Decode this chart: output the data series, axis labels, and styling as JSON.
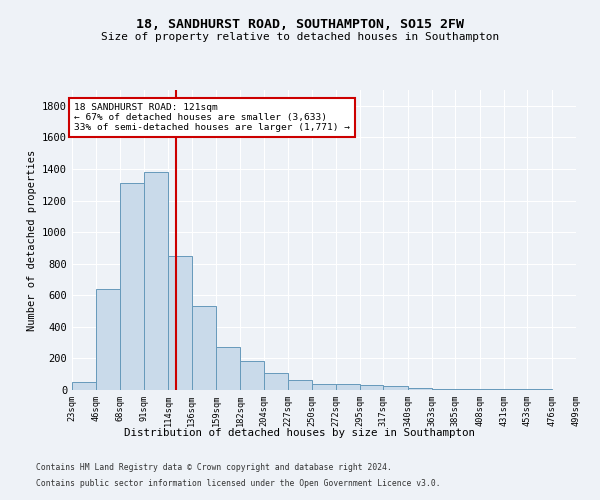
{
  "title1": "18, SANDHURST ROAD, SOUTHAMPTON, SO15 2FW",
  "title2": "Size of property relative to detached houses in Southampton",
  "xlabel": "Distribution of detached houses by size in Southampton",
  "ylabel": "Number of detached properties",
  "bar_color": "#c9daea",
  "bar_edge_color": "#6699bb",
  "vline_x": 121,
  "vline_color": "#cc0000",
  "annotation_title": "18 SANDHURST ROAD: 121sqm",
  "annotation_line2": "← 67% of detached houses are smaller (3,633)",
  "annotation_line3": "33% of semi-detached houses are larger (1,771) →",
  "annotation_box_color": "#cc0000",
  "bin_edges": [
    23,
    46,
    68,
    91,
    114,
    136,
    159,
    182,
    204,
    227,
    250,
    272,
    295,
    317,
    340,
    363,
    385,
    408,
    431,
    453,
    476
  ],
  "bar_heights": [
    50,
    640,
    1310,
    1380,
    850,
    530,
    275,
    185,
    105,
    65,
    40,
    40,
    30,
    25,
    15,
    5,
    5,
    5,
    5,
    5
  ],
  "ylim": [
    0,
    1900
  ],
  "yticks": [
    0,
    200,
    400,
    600,
    800,
    1000,
    1200,
    1400,
    1600,
    1800
  ],
  "footer1": "Contains HM Land Registry data © Crown copyright and database right 2024.",
  "footer2": "Contains public sector information licensed under the Open Government Licence v3.0.",
  "bg_color": "#eef2f7",
  "plot_bg_color": "#eef2f7",
  "grid_color": "#ffffff"
}
